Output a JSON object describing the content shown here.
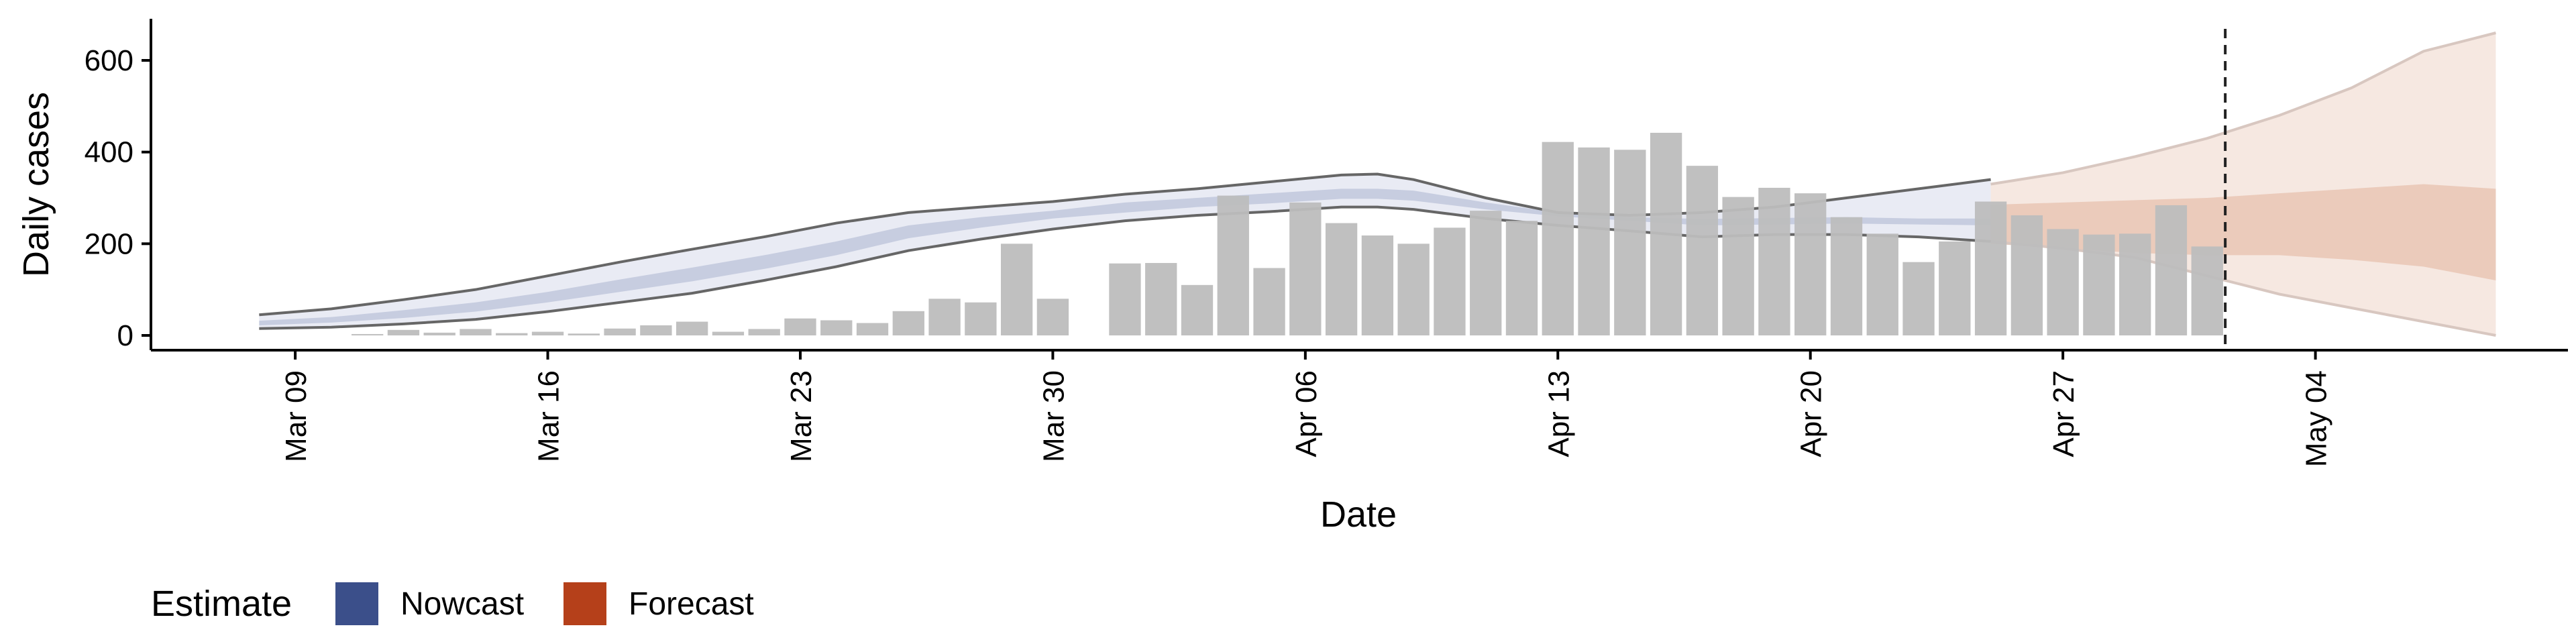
{
  "chart_data": {
    "type": "bar",
    "title": "",
    "xlabel": "Date",
    "ylabel": "Daily cases",
    "ylim": [
      0,
      680
    ],
    "yticks": [
      0,
      200,
      400,
      600
    ],
    "xticks": [
      {
        "label": "Mar 09",
        "day": 8
      },
      {
        "label": "Mar 16",
        "day": 15
      },
      {
        "label": "Mar 23",
        "day": 22
      },
      {
        "label": "Mar 30",
        "day": 29
      },
      {
        "label": "Apr 06",
        "day": 36
      },
      {
        "label": "Apr 13",
        "day": 43
      },
      {
        "label": "Apr 20",
        "day": 50
      },
      {
        "label": "Apr 27",
        "day": 57
      },
      {
        "label": "May 04",
        "day": 64
      }
    ],
    "xlim_days": [
      4.0,
      71.0
    ],
    "forecast_date_day": 61.5,
    "observed_cases": {
      "start_day": 10,
      "values": [
        3,
        12,
        6,
        14,
        5,
        8,
        4,
        15,
        22,
        30,
        8,
        14,
        37,
        33,
        27,
        53,
        80,
        72,
        200,
        80,
        0,
        157,
        158,
        110,
        305,
        147,
        290,
        245,
        218,
        200,
        235,
        272,
        250,
        422,
        410,
        405,
        442,
        370,
        302,
        322,
        310,
        258,
        222,
        160,
        205,
        292,
        262,
        232,
        220,
        222,
        284,
        194
      ]
    },
    "nowcast": {
      "start_day": 7,
      "end_day": 55,
      "days": [
        7,
        9,
        11,
        13,
        15,
        17,
        19,
        21,
        23,
        25,
        27,
        29,
        31,
        33,
        35,
        37,
        38,
        39,
        41,
        43,
        45,
        47,
        49,
        51,
        53,
        55
      ],
      "outer_low": [
        15,
        18,
        25,
        35,
        52,
        72,
        92,
        120,
        150,
        185,
        210,
        232,
        250,
        262,
        270,
        280,
        280,
        275,
        255,
        240,
        228,
        215,
        220,
        220,
        215,
        205
      ],
      "inner_low": [
        22,
        28,
        38,
        52,
        72,
        95,
        118,
        145,
        175,
        212,
        235,
        255,
        268,
        280,
        288,
        298,
        298,
        294,
        275,
        260,
        250,
        240,
        242,
        244,
        242,
        240
      ],
      "inner_high": [
        32,
        40,
        55,
        72,
        95,
        122,
        148,
        175,
        205,
        240,
        258,
        272,
        290,
        300,
        310,
        320,
        320,
        316,
        290,
        268,
        258,
        254,
        256,
        258,
        255,
        255
      ],
      "outer_high": [
        45,
        58,
        78,
        100,
        130,
        160,
        188,
        215,
        245,
        268,
        280,
        292,
        308,
        320,
        335,
        350,
        352,
        340,
        300,
        268,
        262,
        268,
        280,
        300,
        320,
        340
      ]
    },
    "forecast": {
      "start_day": 55,
      "end_day": 69,
      "days": [
        55,
        57,
        59,
        61,
        62,
        63,
        64,
        65,
        67,
        69
      ],
      "outer_low": [
        205,
        190,
        170,
        130,
        110,
        90,
        75,
        60,
        30,
        0
      ],
      "inner_low": [
        200,
        190,
        180,
        175,
        175,
        175,
        170,
        165,
        150,
        120
      ],
      "inner_high": [
        285,
        290,
        295,
        300,
        305,
        310,
        315,
        320,
        330,
        320
      ],
      "outer_high": [
        330,
        355,
        390,
        430,
        455,
        480,
        510,
        540,
        620,
        660
      ]
    },
    "series": [
      {
        "name": "Nowcast",
        "color": "#3b4f8a"
      },
      {
        "name": "Forecast",
        "color": "#b5401a"
      }
    ],
    "legend_placement": "bottom-left",
    "grid": false
  },
  "legend": {
    "title": "Estimate",
    "items": [
      {
        "label": "Nowcast",
        "color": "#3b4f8a"
      },
      {
        "label": "Forecast",
        "color": "#b5401a"
      }
    ]
  },
  "colors": {
    "bar": "#bdbdbd",
    "nowcast_outer": "#e9ebf4",
    "nowcast_inner": "#c7cde0",
    "forecast_outer": "#f6e8e1",
    "forecast_inner": "#ebcbbb",
    "interval_line": "#666666"
  }
}
